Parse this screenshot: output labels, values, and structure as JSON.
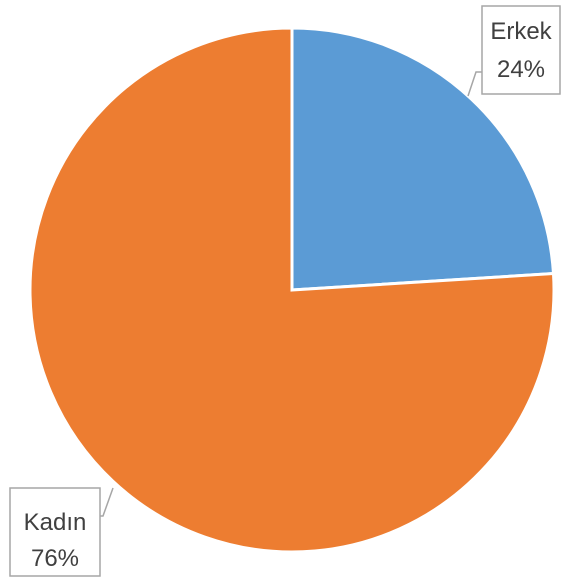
{
  "chart_data": {
    "type": "pie",
    "title": "",
    "slices": [
      {
        "category": "Erkek",
        "value": 24,
        "label": "24%",
        "color": "#5b9bd5"
      },
      {
        "category": "Kadın",
        "value": 76,
        "label": "76%",
        "color": "#ed7d31"
      }
    ],
    "start_angle": "12 o'clock",
    "direction": "clockwise",
    "data_labels": "callouts with category and percent",
    "legend": "none"
  }
}
